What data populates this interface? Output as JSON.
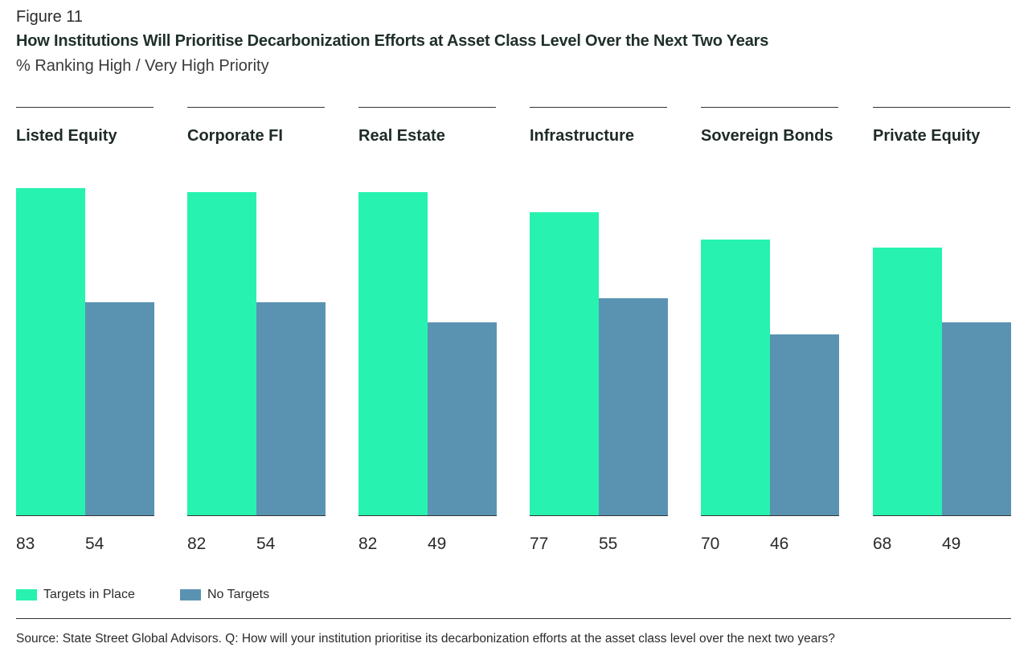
{
  "figure_label": "Figure 11",
  "title": "How Institutions Will Prioritise Decarbonization Efforts at Asset Class Level Over the Next Two Years",
  "subtitle": "% Ranking High / Very High Priority",
  "source": "Source: State Street Global Advisors. Q: How will your institution prioritise its decarbonization efforts at the asset class level over the next two years?",
  "colors": {
    "targets_in_place": "#27f2b0",
    "no_targets": "#5a93b2"
  },
  "chart_data": {
    "type": "bar",
    "title": "How Institutions Will Prioritise Decarbonization Efforts at Asset Class Level Over the Next Two Years",
    "subtitle": "% Ranking High / Very High Priority",
    "categories": [
      "Listed Equity",
      "Corporate FI",
      "Real Estate",
      "Infrastructure",
      "Sovereign Bonds",
      "Private Equity"
    ],
    "series": [
      {
        "name": "Targets in Place",
        "values": [
          83,
          82,
          82,
          77,
          70,
          68
        ]
      },
      {
        "name": "No Targets",
        "values": [
          54,
          54,
          49,
          55,
          46,
          49
        ]
      }
    ],
    "ylim": [
      0,
      100
    ],
    "grid": false,
    "legend": "bottom-left"
  }
}
